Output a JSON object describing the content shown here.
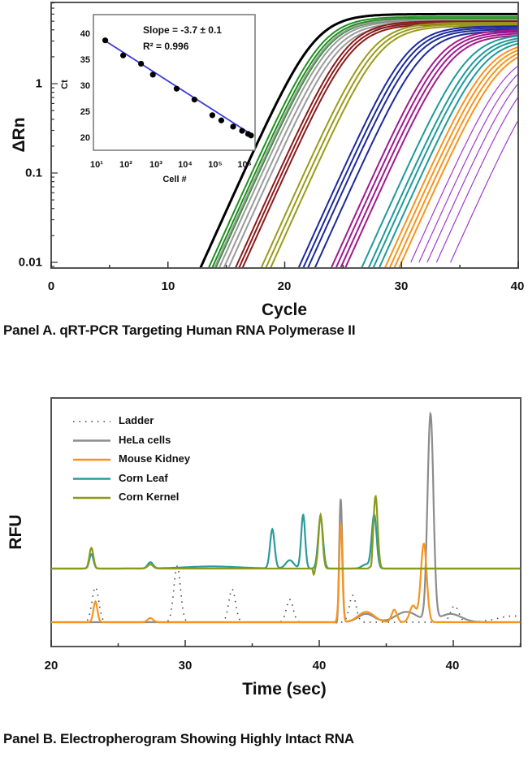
{
  "chart_data": [
    {
      "type": "line",
      "panel": "A",
      "caption": "Panel A. qRT-PCR Targeting Human RNA Polymerase II",
      "xlabel": "Cycle",
      "ylabel": "ΔRn",
      "xlim": [
        0,
        40
      ],
      "ylim": [
        0.0087,
        7
      ],
      "yscale": "log",
      "xticks": [
        "0",
        "10",
        "20",
        "30",
        "40"
      ],
      "yticks": [
        "0.01",
        "0.1",
        "1"
      ],
      "grid": false,
      "series": [
        {
          "color": "#000000",
          "threshold_cycle": [
            13.0
          ],
          "plateau": 6.0
        },
        {
          "color": "#1f8f1f",
          "threshold_cycle": [
            13.7,
            14.0,
            14.3
          ],
          "plateau": 5.6
        },
        {
          "color": "#9a9a9a",
          "threshold_cycle": [
            14.2,
            14.6,
            15.0,
            15.4
          ],
          "plateau": 5.2
        },
        {
          "color": "#8b1a1a",
          "threshold_cycle": [
            16.0,
            16.3,
            16.6
          ],
          "plateau": 5.0
        },
        {
          "color": "#9a9a1a",
          "threshold_cycle": [
            18.2,
            18.6,
            19.0
          ],
          "plateau": 4.8
        },
        {
          "color": "#1c2a9a",
          "threshold_cycle": [
            21.4,
            21.8,
            22.2,
            22.8
          ],
          "plateau": 4.4
        },
        {
          "color": "#a01a8c",
          "threshold_cycle": [
            24.2,
            24.6,
            25.0,
            25.4
          ],
          "plateau": 4.0
        },
        {
          "color": "#1f9a9a",
          "threshold_cycle": [
            26.8,
            27.4,
            27.8,
            28.3
          ],
          "plateau": 3.6
        },
        {
          "color": "#f7941d",
          "threshold_cycle": [
            28.8,
            29.2,
            29.6,
            30.0
          ],
          "plateau": 3.0
        },
        {
          "color": "#a03ad0",
          "threshold_cycle": [
            30.8,
            31.5,
            32.2,
            33.0,
            34.2
          ],
          "plateau": 2.4
        }
      ]
    },
    {
      "type": "scatter",
      "panel": "A-inset",
      "xlabel": "Cell #",
      "ylabel": "Ct",
      "xscale": "log",
      "xlim": [
        10,
        2500000
      ],
      "ylim": [
        17.5,
        43
      ],
      "xticks": [
        "10¹",
        "10²",
        "10³",
        "10⁴",
        "10⁵",
        "10⁶"
      ],
      "yticks": [
        "20",
        "25",
        "30",
        "35",
        "40"
      ],
      "annotations": [
        "Slope = -3.7 ± 0.1",
        "R² = 0.996"
      ],
      "points": [
        {
          "x": 25,
          "y": 38.8
        },
        {
          "x": 100,
          "y": 35.9
        },
        {
          "x": 400,
          "y": 34.3
        },
        {
          "x": 1000,
          "y": 32.2
        },
        {
          "x": 6300,
          "y": 29.5
        },
        {
          "x": 25000,
          "y": 27.4
        },
        {
          "x": 100000,
          "y": 24.4
        },
        {
          "x": 200000,
          "y": 23.4
        },
        {
          "x": 500000,
          "y": 22.2
        },
        {
          "x": 1000000,
          "y": 21.4
        },
        {
          "x": 1600000,
          "y": 20.8
        },
        {
          "x": 2000000,
          "y": 20.5
        }
      ],
      "fit": {
        "slope": -3.7,
        "color": "#3a3adc",
        "from": [
          22,
          38.9
        ],
        "to": [
          2200000,
          20.6
        ]
      },
      "point_color": "#000000"
    },
    {
      "type": "line",
      "panel": "B",
      "caption": "Panel B. Electropherogram Showing Highly Intact RNA",
      "xlabel": "Time (sec)",
      "ylabel": "RFU",
      "xlim": [
        20,
        55
      ],
      "xticks": [
        "20",
        "30",
        "40",
        "40"
      ],
      "legend": "top-left",
      "series": [
        {
          "name": "Ladder",
          "color": "#444444",
          "style": "dotted",
          "baseline": 0,
          "peaks": [
            [
              23.3,
              17,
              0.25
            ],
            [
              29.4,
              27,
              0.25
            ],
            [
              33.5,
              16,
              0.25
            ],
            [
              37.8,
              11,
              0.25
            ],
            [
              42.5,
              13,
              0.25
            ],
            [
              50.1,
              8,
              0.3
            ],
            [
              54.5,
              3,
              1.2
            ]
          ]
        },
        {
          "name": "HeLa cells",
          "color": "#8c8c8c",
          "style": "solid",
          "baseline": 0,
          "peaks": [
            [
              41.6,
              60,
              0.12
            ],
            [
              41.4,
              -6,
              0.08
            ],
            [
              43.5,
              4,
              0.6
            ],
            [
              46.5,
              5,
              0.8
            ],
            [
              48.3,
              100,
              0.22
            ],
            [
              49.8,
              4,
              0.8
            ]
          ]
        },
        {
          "name": "Mouse Kidney",
          "color": "#f7941d",
          "style": "solid",
          "baseline": 0,
          "peaks": [
            [
              23.3,
              10,
              0.15
            ],
            [
              27.4,
              2,
              0.2
            ],
            [
              41.6,
              48,
              0.12
            ],
            [
              41.45,
              -5,
              0.05
            ],
            [
              43.5,
              5,
              0.6
            ],
            [
              45.6,
              6,
              0.2
            ],
            [
              47.0,
              8,
              0.25
            ],
            [
              47.8,
              38,
              0.22
            ]
          ]
        },
        {
          "name": "Corn Leaf",
          "color": "#2a9a9a",
          "style": "solid",
          "baseline": 26,
          "peaks": [
            [
              23.0,
              7,
              0.15
            ],
            [
              27.4,
              3,
              0.2
            ],
            [
              32,
              1,
              2
            ],
            [
              36.5,
              19,
              0.17
            ],
            [
              37.8,
              4,
              0.3
            ],
            [
              38.8,
              26,
              0.15
            ],
            [
              40.1,
              25,
              0.18
            ],
            [
              43.5,
              2,
              0.3
            ],
            [
              44.1,
              26,
              0.18
            ]
          ]
        },
        {
          "name": "Corn Kernel",
          "color": "#8a9a1a",
          "style": "solid",
          "baseline": 26,
          "peaks": [
            [
              23.0,
              10,
              0.15
            ],
            [
              27.4,
              2,
              0.2
            ],
            [
              39.6,
              -3,
              0.06
            ],
            [
              40.1,
              26,
              0.15
            ],
            [
              43.9,
              -3,
              0.06
            ],
            [
              44.2,
              35,
              0.16
            ]
          ]
        }
      ]
    }
  ]
}
